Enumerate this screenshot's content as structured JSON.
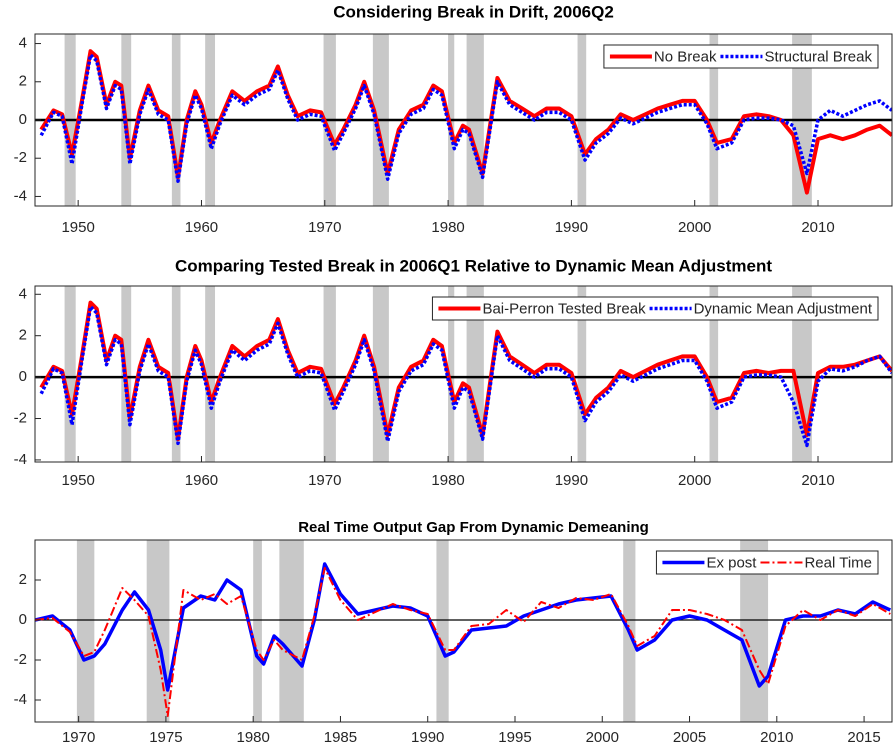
{
  "chart_data": [
    {
      "type": "line",
      "title": "Considering Break in Drift, 2006Q2",
      "x": [
        1947,
        1948,
        1948.7,
        1949.5,
        1950.3,
        1951,
        1951.5,
        1952.3,
        1953,
        1953.5,
        1954.2,
        1955,
        1955.7,
        1956.5,
        1957.3,
        1958.1,
        1958.8,
        1959.5,
        1960,
        1960.8,
        1961.5,
        1962.5,
        1963.5,
        1964.5,
        1965.5,
        1966.2,
        1967,
        1967.8,
        1968.8,
        1969.7,
        1970.8,
        1971.5,
        1972.5,
        1973.2,
        1974,
        1975.1,
        1976,
        1977,
        1978,
        1978.8,
        1979.5,
        1980.5,
        1981.2,
        1981.7,
        1982.8,
        1984,
        1985,
        1986,
        1987,
        1988,
        1989,
        1990,
        1991.1,
        1992,
        1993,
        1994,
        1995,
        1996,
        1997,
        1998,
        1999,
        2000,
        2001,
        2001.8,
        2003,
        2004,
        2005,
        2006,
        2007,
        2008,
        2009.1,
        2010,
        2011,
        2012,
        2013,
        2014,
        2015,
        2016
      ],
      "series": [
        {
          "name": "No Break",
          "color": "#ff0000",
          "line_style": "solid",
          "values": [
            -0.5,
            0.5,
            0.3,
            -1.8,
            1.0,
            3.6,
            3.3,
            0.8,
            2.0,
            1.8,
            -2.0,
            0.5,
            1.8,
            0.5,
            0.2,
            -3.0,
            0.0,
            1.5,
            0.8,
            -1.2,
            0.0,
            1.5,
            1.0,
            1.5,
            1.8,
            2.8,
            1.3,
            0.2,
            0.5,
            0.4,
            -1.3,
            -0.5,
            0.8,
            2.0,
            0.5,
            -2.8,
            -0.5,
            0.5,
            0.8,
            1.8,
            1.5,
            -1.2,
            -0.3,
            -0.5,
            -2.8,
            2.2,
            1.0,
            0.6,
            0.2,
            0.6,
            0.6,
            0.2,
            -1.8,
            -1.0,
            -0.5,
            0.3,
            0.0,
            0.3,
            0.6,
            0.8,
            1.0,
            1.0,
            0.0,
            -1.2,
            -1.0,
            0.2,
            0.3,
            0.2,
            0.0,
            -0.8,
            -3.8,
            -1.0,
            -0.8,
            -1.0,
            -0.8,
            -0.5,
            -0.3,
            -0.8
          ]
        },
        {
          "name": "Structural Break",
          "color": "#0000ff",
          "line_style": "dotted",
          "values": [
            -0.8,
            0.4,
            0.2,
            -2.3,
            0.8,
            3.4,
            3.1,
            0.6,
            1.8,
            1.6,
            -2.3,
            0.3,
            1.6,
            0.3,
            0.0,
            -3.2,
            -0.2,
            1.3,
            0.6,
            -1.5,
            -0.2,
            1.3,
            0.8,
            1.3,
            1.6,
            2.6,
            1.1,
            0.0,
            0.3,
            0.2,
            -1.6,
            -0.7,
            0.6,
            1.8,
            0.3,
            -3.1,
            -0.7,
            0.3,
            0.6,
            1.6,
            1.3,
            -1.5,
            -0.5,
            -0.7,
            -3.0,
            2.0,
            0.8,
            0.4,
            0.0,
            0.4,
            0.4,
            0.0,
            -2.1,
            -1.2,
            -0.7,
            0.1,
            -0.2,
            0.1,
            0.4,
            0.6,
            0.8,
            0.8,
            -0.2,
            -1.5,
            -1.2,
            0.0,
            0.1,
            0.1,
            0.0,
            -0.3,
            -2.8,
            0.0,
            0.5,
            0.2,
            0.5,
            0.8,
            1.0,
            0.5
          ]
        }
      ],
      "recessions": [
        [
          1948.9,
          1949.8
        ],
        [
          1953.5,
          1954.3
        ],
        [
          1957.6,
          1958.3
        ],
        [
          1960.3,
          1961.1
        ],
        [
          1969.9,
          1970.9
        ],
        [
          1973.9,
          1975.2
        ],
        [
          1980.0,
          1980.5
        ],
        [
          1981.5,
          1982.9
        ],
        [
          1990.5,
          1991.2
        ],
        [
          2001.2,
          2001.9
        ],
        [
          2007.9,
          2009.5
        ]
      ],
      "xlim": [
        1946.5,
        2016
      ],
      "xticks": [
        1950,
        1960,
        1970,
        1980,
        1990,
        2000,
        2010
      ],
      "ylim": [
        -4.5,
        4.5
      ],
      "yticks": [
        -4,
        -2,
        0,
        2,
        4
      ],
      "zero_line": true,
      "legend": "upper right"
    },
    {
      "type": "line",
      "title": "Comparing Tested Break in 2006Q1 Relative to Dynamic Mean Adjustment",
      "x": [
        1947,
        1948,
        1948.7,
        1949.5,
        1950.3,
        1951,
        1951.5,
        1952.3,
        1953,
        1953.5,
        1954.2,
        1955,
        1955.7,
        1956.5,
        1957.3,
        1958.1,
        1958.8,
        1959.5,
        1960,
        1960.8,
        1961.5,
        1962.5,
        1963.5,
        1964.5,
        1965.5,
        1966.2,
        1967,
        1967.8,
        1968.8,
        1969.7,
        1970.8,
        1971.5,
        1972.5,
        1973.2,
        1974,
        1975.1,
        1976,
        1977,
        1978,
        1978.8,
        1979.5,
        1980.5,
        1981.2,
        1981.7,
        1982.8,
        1984,
        1985,
        1986,
        1987,
        1988,
        1989,
        1990,
        1991.1,
        1992,
        1993,
        1994,
        1995,
        1996,
        1997,
        1998,
        1999,
        2000,
        2001,
        2001.8,
        2003,
        2004,
        2005,
        2006,
        2007,
        2008,
        2009.1,
        2010,
        2011,
        2012,
        2013,
        2014,
        2015,
        2016
      ],
      "series": [
        {
          "name": "Bai-Perron Tested Break",
          "color": "#ff0000",
          "line_style": "solid",
          "values": [
            -0.5,
            0.5,
            0.3,
            -1.8,
            1.0,
            3.6,
            3.3,
            0.8,
            2.0,
            1.8,
            -2.0,
            0.5,
            1.8,
            0.5,
            0.2,
            -3.0,
            0.0,
            1.5,
            0.8,
            -1.2,
            0.0,
            1.5,
            1.0,
            1.5,
            1.8,
            2.8,
            1.3,
            0.2,
            0.5,
            0.4,
            -1.3,
            -0.5,
            0.8,
            2.0,
            0.5,
            -2.8,
            -0.5,
            0.5,
            0.8,
            1.8,
            1.5,
            -1.2,
            -0.3,
            -0.5,
            -2.8,
            2.2,
            1.0,
            0.6,
            0.2,
            0.6,
            0.6,
            0.2,
            -1.8,
            -1.0,
            -0.5,
            0.3,
            0.0,
            0.3,
            0.6,
            0.8,
            1.0,
            1.0,
            0.0,
            -1.2,
            -1.0,
            0.2,
            0.3,
            0.2,
            0.3,
            0.3,
            -2.8,
            0.2,
            0.5,
            0.5,
            0.6,
            0.8,
            1.0,
            0.3
          ]
        },
        {
          "name": "Dynamic Mean Adjustment",
          "color": "#0000ff",
          "line_style": "dotted",
          "values": [
            -0.8,
            0.4,
            0.2,
            -2.3,
            0.8,
            3.4,
            3.1,
            0.6,
            1.8,
            1.6,
            -2.3,
            0.3,
            1.6,
            0.3,
            0.0,
            -3.2,
            -0.2,
            1.3,
            0.6,
            -1.5,
            -0.2,
            1.3,
            0.8,
            1.3,
            1.6,
            2.6,
            1.1,
            0.0,
            0.3,
            0.2,
            -1.6,
            -0.7,
            0.6,
            1.8,
            0.3,
            -3.1,
            -0.7,
            0.3,
            0.6,
            1.6,
            1.3,
            -1.5,
            -0.5,
            -0.7,
            -3.0,
            2.0,
            0.8,
            0.4,
            0.0,
            0.4,
            0.4,
            0.0,
            -2.1,
            -1.2,
            -0.7,
            0.1,
            -0.2,
            0.1,
            0.4,
            0.6,
            0.8,
            0.8,
            -0.2,
            -1.5,
            -1.2,
            0.0,
            0.1,
            0.1,
            0.0,
            -1.2,
            -3.3,
            -0.2,
            0.4,
            0.3,
            0.5,
            0.8,
            1.0,
            0.2
          ]
        }
      ],
      "recessions": [
        [
          1948.9,
          1949.8
        ],
        [
          1953.5,
          1954.3
        ],
        [
          1957.6,
          1958.3
        ],
        [
          1960.3,
          1961.1
        ],
        [
          1969.9,
          1970.9
        ],
        [
          1973.9,
          1975.2
        ],
        [
          1980.0,
          1980.5
        ],
        [
          1981.5,
          1982.9
        ],
        [
          1990.5,
          1991.2
        ],
        [
          2001.2,
          2001.9
        ],
        [
          2007.9,
          2009.5
        ]
      ],
      "xlim": [
        1946.5,
        2016
      ],
      "xticks": [
        1950,
        1960,
        1970,
        1980,
        1990,
        2000,
        2010
      ],
      "ylim": [
        -4.1,
        4.4
      ],
      "yticks": [
        -4,
        -2,
        0,
        2,
        4
      ],
      "zero_line": true,
      "legend": "upper right"
    },
    {
      "type": "line",
      "title": "Real Time Output Gap From Dynamic Demeaning",
      "x": [
        1967.5,
        1968.5,
        1969.5,
        1970.3,
        1970.9,
        1971.5,
        1972.5,
        1973.2,
        1974,
        1974.7,
        1975.1,
        1976,
        1977,
        1977.8,
        1978.5,
        1979.3,
        1980.2,
        1980.6,
        1981.2,
        1981.7,
        1982.8,
        1983.5,
        1984.1,
        1985,
        1986,
        1987,
        1988,
        1989,
        1990,
        1991,
        1991.5,
        1992.5,
        1993.5,
        1994.5,
        1995.5,
        1996.5,
        1997.5,
        1998.5,
        1999.5,
        2000.5,
        2001.5,
        2002,
        2003,
        2004,
        2005,
        2006,
        2007,
        2008,
        2009,
        2009.5,
        2010.5,
        2011.5,
        2012.5,
        2013.5,
        2014.5,
        2015.5,
        2016.5
      ],
      "series": [
        {
          "name": "Ex post",
          "color": "#0000ff",
          "line_style": "solid",
          "values": [
            0,
            0.2,
            -0.5,
            -2.0,
            -1.8,
            -1.2,
            0.5,
            1.4,
            0.5,
            -1.5,
            -3.5,
            0.6,
            1.2,
            1.0,
            2.0,
            1.5,
            -1.8,
            -2.2,
            -0.8,
            -1.2,
            -2.3,
            0,
            2.8,
            1.3,
            0.3,
            0.5,
            0.7,
            0.6,
            0.2,
            -1.8,
            -1.6,
            -0.5,
            -0.4,
            -0.3,
            0.2,
            0.5,
            0.8,
            1.0,
            1.1,
            1.2,
            -0.5,
            -1.5,
            -1.0,
            0.0,
            0.2,
            0.0,
            -0.5,
            -1.0,
            -3.3,
            -2.8,
            0.0,
            0.2,
            0.2,
            0.5,
            0.3,
            0.9,
            0.5
          ]
        },
        {
          "name": "Real Time",
          "color": "#ff0000",
          "line_style": "dashdot",
          "values": [
            0,
            0.1,
            -0.6,
            -1.8,
            -1.6,
            -0.5,
            1.6,
            1.0,
            0.2,
            -2.5,
            -4.8,
            1.5,
            1.0,
            1.3,
            0.8,
            1.2,
            -1.5,
            -2.0,
            -1.0,
            -1.5,
            -2.0,
            0.2,
            2.6,
            1.0,
            0.0,
            0.4,
            0.8,
            0.5,
            0.3,
            -1.5,
            -1.5,
            -0.3,
            -0.2,
            0.5,
            -0.1,
            0.9,
            0.6,
            1.1,
            1.0,
            1.3,
            -0.3,
            -1.3,
            -0.8,
            0.5,
            0.5,
            0.3,
            0.0,
            -0.5,
            -2.5,
            -3.2,
            -0.3,
            0.5,
            0.0,
            0.5,
            0.2,
            0.8,
            0.3
          ]
        }
      ],
      "recessions": [
        [
          1969.9,
          1970.9
        ],
        [
          1973.9,
          1975.2
        ],
        [
          1980.0,
          1980.5
        ],
        [
          1981.5,
          1982.9
        ],
        [
          1990.5,
          1991.2
        ],
        [
          2001.2,
          2001.9
        ],
        [
          2007.9,
          2009.5
        ]
      ],
      "xlim": [
        1967.5,
        2016.6
      ],
      "xticks": [
        1970,
        1975,
        1980,
        1985,
        1990,
        1995,
        2000,
        2005,
        2010,
        2015
      ],
      "ylim": [
        -5.1,
        4
      ],
      "yticks": [
        -4,
        -2,
        0,
        2
      ],
      "zero_line": true,
      "legend": "upper right"
    }
  ]
}
